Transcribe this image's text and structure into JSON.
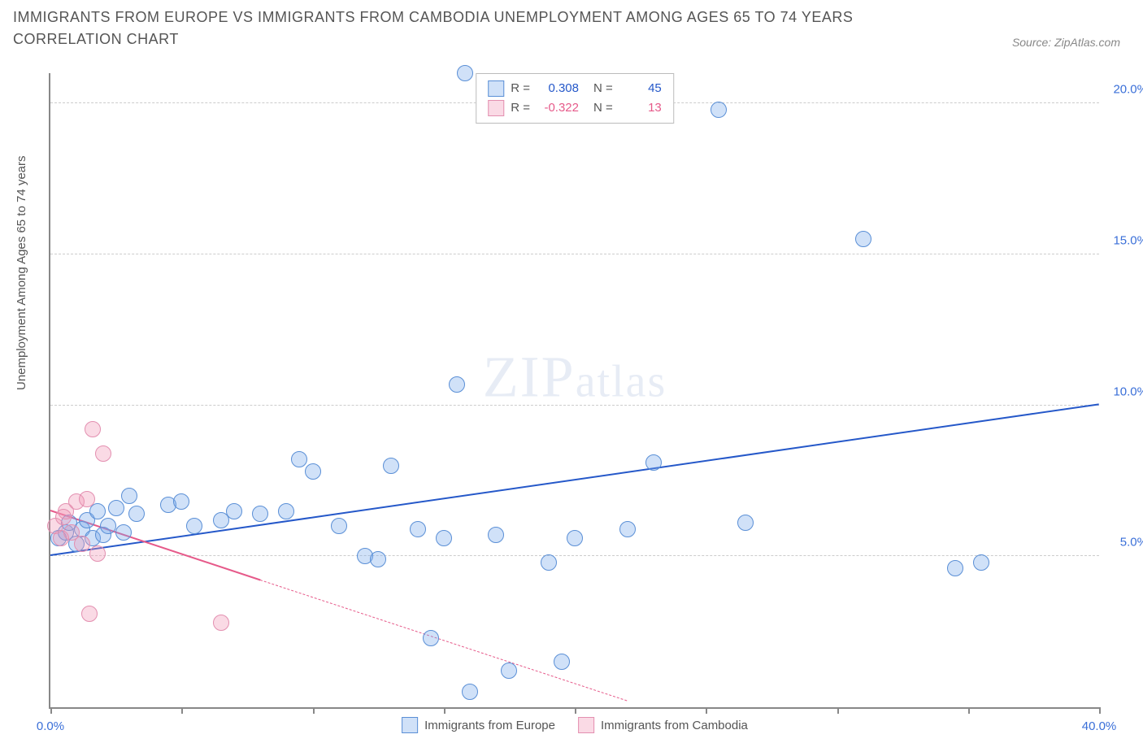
{
  "title": "IMMIGRANTS FROM EUROPE VS IMMIGRANTS FROM CAMBODIA UNEMPLOYMENT AMONG AGES 65 TO 74 YEARS CORRELATION CHART",
  "source_label": "Source: ZipAtlas.com",
  "ylabel": "Unemployment Among Ages 65 to 74 years",
  "watermark": {
    "part1": "ZIP",
    "part2": "atlas"
  },
  "chart": {
    "type": "scatter",
    "background_color": "#ffffff",
    "grid_color": "#cccccc",
    "axis_color": "#888888",
    "xlim": [
      0,
      40
    ],
    "ylim": [
      0,
      21
    ],
    "xtick_positions": [
      0,
      5,
      10,
      15,
      20,
      25,
      30,
      35,
      40
    ],
    "xtick_labels_shown": {
      "0": "0.0%",
      "40": "40.0%"
    },
    "ytick_positions": [
      5,
      10,
      15,
      20
    ],
    "ytick_labels": {
      "5": "5.0%",
      "10": "10.0%",
      "15": "15.0%",
      "20": "20.0%"
    },
    "point_radius": 9,
    "series": [
      {
        "id": "europe",
        "name": "Immigrants from Europe",
        "fill": "rgba(120,170,235,0.35)",
        "stroke": "#5a8fd6",
        "line_color": "#2558c9",
        "line_width": 2.5,
        "R": "0.308",
        "N": "45",
        "trend": {
          "x1": 0,
          "y1": 5.0,
          "x2": 40,
          "y2": 10.0,
          "dash": false
        },
        "points": [
          [
            0.3,
            5.6
          ],
          [
            0.6,
            5.8
          ],
          [
            0.7,
            6.1
          ],
          [
            1.0,
            5.4
          ],
          [
            1.2,
            5.9
          ],
          [
            1.4,
            6.2
          ],
          [
            1.6,
            5.6
          ],
          [
            1.8,
            6.5
          ],
          [
            2.0,
            5.7
          ],
          [
            2.2,
            6.0
          ],
          [
            2.5,
            6.6
          ],
          [
            2.8,
            5.8
          ],
          [
            3.0,
            7.0
          ],
          [
            3.3,
            6.4
          ],
          [
            4.5,
            6.7
          ],
          [
            5.0,
            6.8
          ],
          [
            5.5,
            6.0
          ],
          [
            6.5,
            6.2
          ],
          [
            7.0,
            6.5
          ],
          [
            8.0,
            6.4
          ],
          [
            9.0,
            6.5
          ],
          [
            9.5,
            8.2
          ],
          [
            10.0,
            7.8
          ],
          [
            11.0,
            6.0
          ],
          [
            12.0,
            5.0
          ],
          [
            12.5,
            4.9
          ],
          [
            13.0,
            8.0
          ],
          [
            14.0,
            5.9
          ],
          [
            14.5,
            2.3
          ],
          [
            15.0,
            5.6
          ],
          [
            15.5,
            10.7
          ],
          [
            16.0,
            0.5
          ],
          [
            17.0,
            5.7
          ],
          [
            17.5,
            1.2
          ],
          [
            19.0,
            4.8
          ],
          [
            19.5,
            1.5
          ],
          [
            20.0,
            5.6
          ],
          [
            22.0,
            5.9
          ],
          [
            23.0,
            8.1
          ],
          [
            25.5,
            19.8
          ],
          [
            26.5,
            6.1
          ],
          [
            31.0,
            15.5
          ],
          [
            34.5,
            4.6
          ],
          [
            35.5,
            4.8
          ],
          [
            15.8,
            21.0
          ]
        ]
      },
      {
        "id": "cambodia",
        "name": "Immigrants from Cambodia",
        "fill": "rgba(240,150,180,0.35)",
        "stroke": "#e38fb0",
        "line_color": "#e65a8a",
        "line_width": 2,
        "R": "-0.322",
        "N": "13",
        "trend": {
          "x1": 0,
          "y1": 6.5,
          "x2": 8,
          "y2": 4.2,
          "dash": false
        },
        "trend_extrapolate": {
          "x1": 8,
          "y1": 4.2,
          "x2": 22,
          "y2": 0.2,
          "dash": true
        },
        "points": [
          [
            0.2,
            6.0
          ],
          [
            0.4,
            5.6
          ],
          [
            0.6,
            6.5
          ],
          [
            0.8,
            5.8
          ],
          [
            1.0,
            6.8
          ],
          [
            1.2,
            5.4
          ],
          [
            1.4,
            6.9
          ],
          [
            1.6,
            9.2
          ],
          [
            1.8,
            5.1
          ],
          [
            2.0,
            8.4
          ],
          [
            1.5,
            3.1
          ],
          [
            0.5,
            6.3
          ],
          [
            6.5,
            2.8
          ]
        ]
      }
    ]
  },
  "legend_top": {
    "r_label": "R =",
    "n_label": "N =",
    "label_color": "#555555",
    "val_color_1": "#2558c9",
    "val_color_2": "#e65a8a"
  }
}
